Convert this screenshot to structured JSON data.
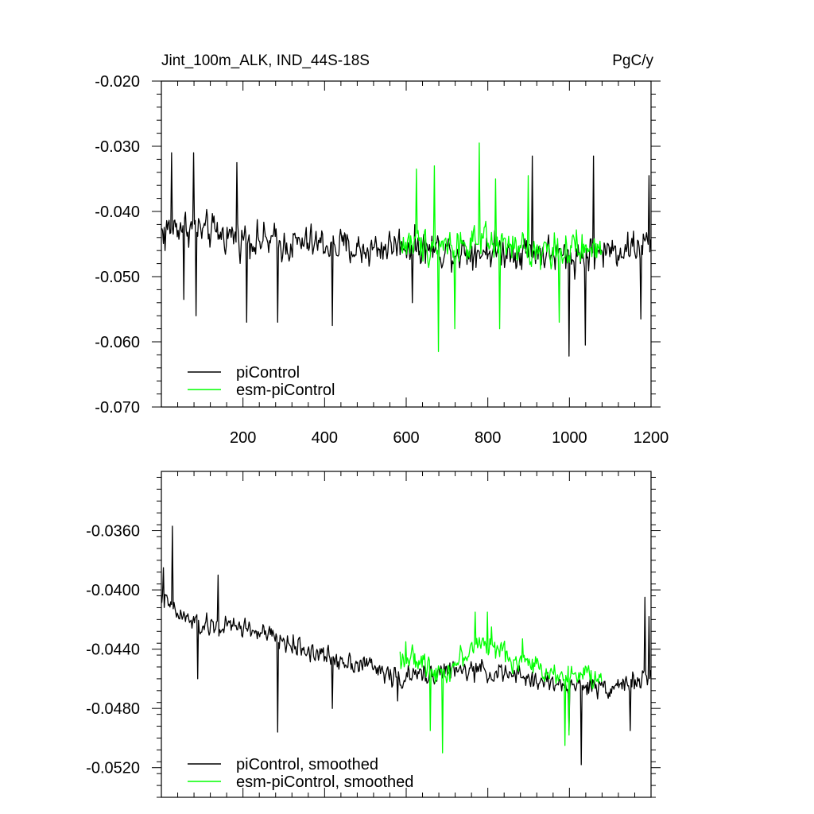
{
  "chart_data": [
    {
      "type": "line",
      "title": "Jint_100m_ALK, IND_44S-18S",
      "units": "PgC/y",
      "xlim": [
        0,
        1200
      ],
      "ylim": [
        -0.07,
        -0.02
      ],
      "xticks": [
        200,
        400,
        600,
        800,
        1000,
        1200
      ],
      "xtick_labels": [
        "200",
        "400",
        "600",
        "800",
        "1000",
        "1200"
      ],
      "yticks": [
        -0.07,
        -0.06,
        -0.05,
        -0.04,
        -0.03,
        -0.02
      ],
      "ytick_labels": [
        "-0.070",
        "-0.060",
        "-0.050",
        "-0.040",
        "-0.030",
        "-0.020"
      ],
      "legend_position": "bottom-left",
      "series": [
        {
          "name": "piControl",
          "color": "#000000",
          "x_start": 1,
          "x_end": 1200,
          "anchors": [
            [
              1,
              -0.043
            ],
            [
              50,
              -0.042
            ],
            [
              100,
              -0.043
            ],
            [
              200,
              -0.044
            ],
            [
              300,
              -0.045
            ],
            [
              400,
              -0.045
            ],
            [
              500,
              -0.046
            ],
            [
              580,
              -0.045
            ],
            [
              700,
              -0.046
            ],
            [
              800,
              -0.046
            ],
            [
              900,
              -0.046
            ],
            [
              1000,
              -0.047
            ],
            [
              1100,
              -0.046
            ],
            [
              1200,
              -0.045
            ]
          ],
          "noise_amplitude": 0.0045,
          "extremes": [
            [
              10,
              -0.046
            ],
            [
              25,
              -0.031
            ],
            [
              55,
              -0.0535
            ],
            [
              80,
              -0.031
            ],
            [
              85,
              -0.056
            ],
            [
              185,
              -0.0325
            ],
            [
              210,
              -0.057
            ],
            [
              285,
              -0.057
            ],
            [
              420,
              -0.0575
            ],
            [
              615,
              -0.054
            ],
            [
              910,
              -0.0315
            ],
            [
              1000,
              -0.0622
            ],
            [
              1040,
              -0.0605
            ],
            [
              1060,
              -0.0315
            ],
            [
              1175,
              -0.0565
            ],
            [
              1195,
              -0.0345
            ]
          ]
        },
        {
          "name": "esm-piControl",
          "color": "#00ff00",
          "x_start": 585,
          "x_end": 1080,
          "anchors": [
            [
              585,
              -0.045
            ],
            [
              700,
              -0.045
            ],
            [
              800,
              -0.045
            ],
            [
              900,
              -0.046
            ],
            [
              1000,
              -0.046
            ],
            [
              1080,
              -0.046
            ]
          ],
          "noise_amplitude": 0.0045,
          "extremes": [
            [
              625,
              -0.0335
            ],
            [
              670,
              -0.033
            ],
            [
              680,
              -0.0615
            ],
            [
              720,
              -0.058
            ],
            [
              780,
              -0.0295
            ],
            [
              820,
              -0.035
            ],
            [
              830,
              -0.058
            ],
            [
              900,
              -0.0345
            ],
            [
              975,
              -0.057
            ]
          ]
        }
      ]
    },
    {
      "type": "line",
      "title": "",
      "xlim": [
        0,
        1200
      ],
      "ylim": [
        -0.054,
        -0.032
      ],
      "xticks": [
        200,
        400,
        600,
        800,
        1000,
        1200
      ],
      "yticks": [
        -0.052,
        -0.048,
        -0.044,
        -0.04,
        -0.036
      ],
      "ytick_labels": [
        "-0.0520",
        "-0.0480",
        "-0.0440",
        "-0.0400",
        "-0.0360"
      ],
      "legend_position": "bottom-left",
      "series": [
        {
          "name": "piControl, smoothed",
          "color": "#000000",
          "x_start": 1,
          "x_end": 1200,
          "anchors": [
            [
              1,
              -0.0405
            ],
            [
              30,
              -0.0415
            ],
            [
              100,
              -0.0425
            ],
            [
              200,
              -0.0425
            ],
            [
              300,
              -0.0435
            ],
            [
              400,
              -0.0445
            ],
            [
              500,
              -0.045
            ],
            [
              580,
              -0.046
            ],
            [
              700,
              -0.0455
            ],
            [
              800,
              -0.0455
            ],
            [
              900,
              -0.046
            ],
            [
              1000,
              -0.0465
            ],
            [
              1100,
              -0.0465
            ],
            [
              1200,
              -0.046
            ]
          ],
          "noise_amplitude": 0.0012,
          "extremes": [
            [
              5,
              -0.0385
            ],
            [
              28,
              -0.0357
            ],
            [
              90,
              -0.046
            ],
            [
              140,
              -0.039
            ],
            [
              285,
              -0.0496
            ],
            [
              420,
              -0.048
            ],
            [
              580,
              -0.0475
            ],
            [
              1000,
              -0.0495
            ],
            [
              1030,
              -0.0518
            ],
            [
              1150,
              -0.0495
            ],
            [
              1185,
              -0.0405
            ],
            [
              1195,
              -0.0418
            ]
          ]
        },
        {
          "name": "esm-piControl, smoothed",
          "color": "#00ff00",
          "x_start": 585,
          "x_end": 1080,
          "anchors": [
            [
              585,
              -0.0445
            ],
            [
              700,
              -0.0455
            ],
            [
              780,
              -0.0435
            ],
            [
              850,
              -0.0445
            ],
            [
              950,
              -0.0455
            ],
            [
              1080,
              -0.046
            ]
          ],
          "noise_amplitude": 0.0013,
          "extremes": [
            [
              600,
              -0.0435
            ],
            [
              660,
              -0.0495
            ],
            [
              690,
              -0.051
            ],
            [
              770,
              -0.0415
            ],
            [
              800,
              -0.0415
            ],
            [
              810,
              -0.0425
            ],
            [
              885,
              -0.0433
            ],
            [
              990,
              -0.0505
            ],
            [
              1000,
              -0.0498
            ]
          ]
        }
      ]
    }
  ]
}
